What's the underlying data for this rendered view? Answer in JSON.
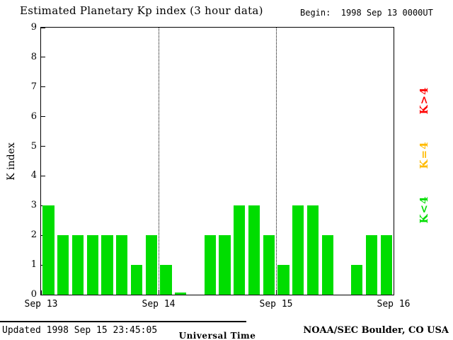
{
  "title": "Estimated Planetary Kp index (3 hour data)",
  "begin_label": "Begin:  1998 Sep 13 0000UT",
  "footer": {
    "updated": "Updated 1998 Sep 15 23:45:05",
    "credit": "NOAA/SEC Boulder, CO USA"
  },
  "legend": [
    {
      "label": "K>4",
      "color": "#ff0000"
    },
    {
      "label": "K=4",
      "color": "#ffbb00"
    },
    {
      "label": "K<4",
      "color": "#00dd00"
    }
  ],
  "chart_data": {
    "type": "bar",
    "title": "Estimated Planetary Kp index (3 hour data)",
    "xlabel": "Universal Time",
    "ylabel": "K index",
    "ylim": [
      0,
      9
    ],
    "yticks": [
      0,
      1,
      2,
      3,
      4,
      5,
      6,
      7,
      8,
      9
    ],
    "xticks": [
      "Sep 13",
      "Sep 14",
      "Sep 15",
      "Sep 16"
    ],
    "bar_interval_hours": 3,
    "bar_color": "#00dd00",
    "grid": "dotted vertical lines at day boundaries",
    "legend_position": "right, rotated",
    "series": [
      {
        "day": "Sep 13",
        "values": [
          3,
          2,
          2,
          2,
          2,
          2,
          1,
          2
        ]
      },
      {
        "day": "Sep 14",
        "values": [
          1,
          0,
          null,
          2,
          2,
          3,
          3,
          2
        ]
      },
      {
        "day": "Sep 15",
        "values": [
          1,
          3,
          3,
          2,
          null,
          1,
          2,
          2
        ]
      }
    ]
  }
}
